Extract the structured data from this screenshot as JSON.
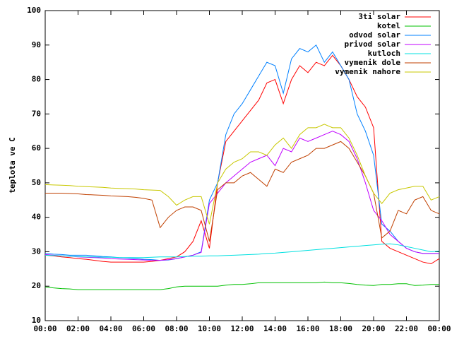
{
  "chart_data": {
    "type": "line",
    "ylabel": "teplota ve C",
    "x": [
      0,
      0.5,
      1,
      1.5,
      2,
      2.5,
      3,
      3.5,
      4,
      4.5,
      5,
      5.5,
      6,
      6.5,
      7,
      7.5,
      8,
      8.5,
      9,
      9.5,
      10,
      10.5,
      11,
      11.5,
      12,
      12.5,
      13,
      13.5,
      14,
      14.5,
      15,
      15.5,
      16,
      16.5,
      17,
      17.5,
      18,
      18.5,
      19,
      19.5,
      20,
      20.5,
      21,
      21.5,
      22,
      22.5,
      23,
      23.5,
      24
    ],
    "xlim": [
      0,
      24
    ],
    "xticks": [
      {
        "value": 0,
        "label": "00:00"
      },
      {
        "value": 2,
        "label": "02:00"
      },
      {
        "value": 4,
        "label": "04:00"
      },
      {
        "value": 6,
        "label": "06:00"
      },
      {
        "value": 8,
        "label": "08:00"
      },
      {
        "value": 10,
        "label": "10:00"
      },
      {
        "value": 12,
        "label": "12:00"
      },
      {
        "value": 14,
        "label": "14:00"
      },
      {
        "value": 16,
        "label": "16:00"
      },
      {
        "value": 18,
        "label": "18:00"
      },
      {
        "value": 20,
        "label": "20:00"
      },
      {
        "value": 22,
        "label": "22:00"
      },
      {
        "value": 24,
        "label": "00:00"
      }
    ],
    "ylim": [
      10,
      100
    ],
    "yticks": [
      10,
      20,
      30,
      40,
      50,
      60,
      70,
      80,
      90,
      100
    ],
    "legend": "top-right",
    "series": [
      {
        "name": "3ti solar",
        "color": "#ff0000",
        "values": [
          29,
          28.8,
          28.5,
          28.3,
          28,
          27.8,
          27.5,
          27.2,
          27,
          27,
          27,
          27,
          27,
          27.2,
          27.5,
          28,
          28.5,
          30,
          33,
          39,
          31,
          50,
          62,
          65,
          68,
          71,
          74,
          79,
          80,
          73,
          80,
          84,
          82,
          85,
          84,
          87,
          84,
          80,
          75,
          72,
          66,
          33,
          31,
          30,
          29,
          28,
          27,
          26.5,
          28
        ]
      },
      {
        "name": "kotel",
        "color": "#00c000",
        "values": [
          19.8,
          19.5,
          19.3,
          19.2,
          19,
          19,
          19,
          19,
          19,
          19,
          19,
          19,
          19,
          19,
          19,
          19.3,
          19.8,
          20,
          20,
          20,
          20,
          20,
          20.3,
          20.5,
          20.5,
          20.7,
          21,
          21,
          21,
          21,
          21,
          21,
          21,
          21,
          21.2,
          21,
          21,
          20.8,
          20.5,
          20.3,
          20.2,
          20.5,
          20.5,
          20.7,
          20.7,
          20.2,
          20.3,
          20.5,
          20.5
        ]
      },
      {
        "name": "odvod solar",
        "color": "#0080ff",
        "values": [
          29.5,
          29.3,
          29.2,
          29,
          29,
          29,
          28.8,
          28.6,
          28.5,
          28.3,
          28.2,
          28,
          27.8,
          27.7,
          27.5,
          27.6,
          28,
          28.5,
          29,
          30,
          45,
          50,
          64,
          70,
          73,
          77,
          81,
          85,
          84,
          76,
          86,
          89,
          88,
          90,
          85,
          88,
          84,
          80,
          70,
          65,
          58,
          38,
          36,
          33,
          31,
          30,
          29.5,
          29.5,
          29.5
        ]
      },
      {
        "name": "privod solar",
        "color": "#c000ff",
        "values": [
          29.2,
          29,
          28.8,
          28.7,
          28.5,
          28.4,
          28.3,
          28.2,
          28,
          27.9,
          27.8,
          27.7,
          27.6,
          27.5,
          27.5,
          27.7,
          28,
          28.5,
          29,
          29.8,
          44,
          47,
          50,
          52,
          54,
          56,
          57,
          58,
          55,
          60,
          59,
          63,
          62,
          63,
          64,
          65,
          64,
          62,
          57,
          50,
          42,
          39,
          35,
          33,
          31,
          30,
          29.5,
          29.5,
          29.5
        ]
      },
      {
        "name": "kutloch",
        "color": "#00e0e0",
        "values": [
          29,
          28.9,
          28.8,
          28.7,
          28.6,
          28.5,
          28.5,
          28.4,
          28.4,
          28.3,
          28.3,
          28.3,
          28.3,
          28.4,
          28.5,
          28.5,
          28.5,
          28.6,
          28.7,
          28.7,
          28.8,
          28.8,
          28.9,
          29,
          29.1,
          29.2,
          29.3,
          29.5,
          29.6,
          29.8,
          30,
          30.2,
          30.4,
          30.6,
          30.8,
          31,
          31.2,
          31.4,
          31.6,
          31.8,
          32,
          32.2,
          32.3,
          32,
          31.5,
          31,
          30.5,
          30,
          30.2
        ]
      },
      {
        "name": "vymenik dole",
        "color": "#c04000",
        "values": [
          47,
          47,
          47,
          46.9,
          46.8,
          46.6,
          46.5,
          46.4,
          46.2,
          46.1,
          46,
          45.8,
          45.5,
          45,
          37,
          40,
          42,
          43,
          43,
          42,
          33,
          48,
          50,
          50,
          52,
          53,
          51,
          49,
          54,
          53,
          56,
          57,
          58,
          60,
          60,
          61,
          62,
          60,
          56,
          52,
          47,
          34,
          36,
          42,
          41,
          45,
          46,
          42,
          41
        ]
      },
      {
        "name": "vymenik nahore",
        "color": "#c8c800",
        "values": [
          49.5,
          49.4,
          49.3,
          49.2,
          49,
          48.9,
          48.8,
          48.7,
          48.5,
          48.4,
          48.3,
          48.2,
          48,
          47.9,
          47.8,
          46,
          43.5,
          45,
          46,
          46,
          38,
          50,
          54,
          56,
          57,
          59,
          59,
          58,
          61,
          63,
          60,
          64,
          66,
          66,
          67,
          66,
          66,
          63,
          58,
          52,
          47,
          44,
          47,
          48,
          48.5,
          49,
          49,
          45,
          46
        ]
      }
    ]
  }
}
